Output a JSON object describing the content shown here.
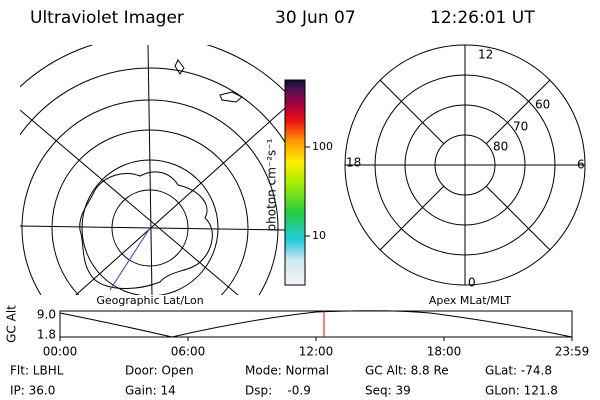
{
  "header": {
    "instrument": "Ultraviolet Imager",
    "date": "30 Jun 07",
    "time": "12:26:01 UT"
  },
  "colorbar": {
    "label": "photon cm⁻²s⁻¹",
    "ticks": [
      "100",
      "10"
    ]
  },
  "left_panel": {
    "label": "Geographic Lat/Lon"
  },
  "right_panel": {
    "label": "Apex MLat/MLT",
    "mlt_labels": [
      "12",
      "6",
      "0",
      "18"
    ],
    "mlat_labels": [
      "80",
      "70",
      "60"
    ]
  },
  "altitude_strip": {
    "axis_label": "GC Alt",
    "yticks": [
      "9.0",
      "1.8"
    ],
    "xticks": [
      "00:00",
      "06:00",
      "12:00",
      "18:00",
      "23:59"
    ]
  },
  "info": [
    [
      "Flt: LBHL",
      "Door: Open",
      "Mode: Normal",
      "GC Alt: 8.8 Re",
      "GLat: -74.8"
    ],
    [
      "IP: 36.0",
      "Gain: 14",
      "Dsp:    -0.9",
      "Seq: 39",
      "GLon: 121.8"
    ]
  ]
}
